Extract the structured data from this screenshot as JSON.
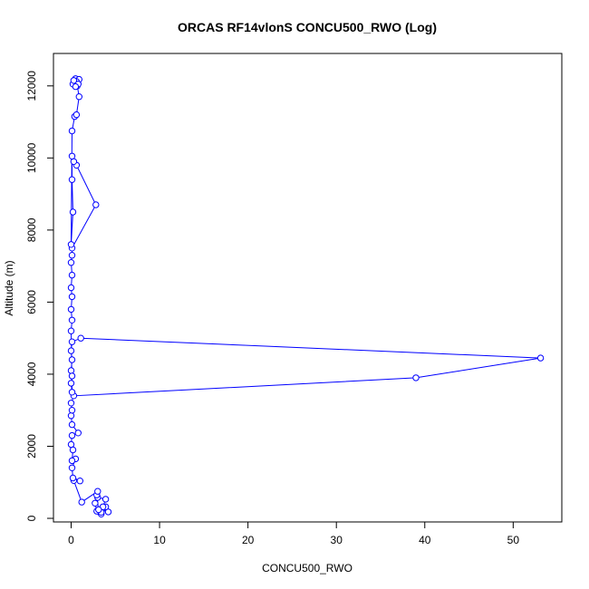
{
  "chart_data": {
    "type": "line",
    "title": "ORCAS RF14vlonS CONCU500_RWO (Log)",
    "xlabel": "CONCU500_RWO",
    "ylabel": "Altitude (m)",
    "xlim": [
      -2,
      55.5
    ],
    "ylim": [
      -100,
      12900
    ],
    "xticks": [
      0,
      10,
      20,
      30,
      40,
      50
    ],
    "yticks": [
      0,
      2000,
      4000,
      6000,
      8000,
      10000,
      12000
    ],
    "grid": false,
    "legend": "none",
    "marker": "open-circle",
    "series": [
      {
        "color": "#0000ff",
        "points": [
          {
            "x": 4.2,
            "y": 180
          },
          {
            "x": 3.9,
            "y": 320
          },
          {
            "x": 3.5,
            "y": 250
          },
          {
            "x": 3.3,
            "y": 160
          },
          {
            "x": 3.4,
            "y": 120
          },
          {
            "x": 2.9,
            "y": 200
          },
          {
            "x": 2.7,
            "y": 420
          },
          {
            "x": 3.0,
            "y": 580
          },
          {
            "x": 3.9,
            "y": 530
          },
          {
            "x": 3.6,
            "y": 320
          },
          {
            "x": 3.4,
            "y": 170
          },
          {
            "x": 3.1,
            "y": 240
          },
          {
            "x": 2.9,
            "y": 650
          },
          {
            "x": 3.0,
            "y": 750
          },
          {
            "x": 1.2,
            "y": 450
          },
          {
            "x": 0.3,
            "y": 1050
          },
          {
            "x": 1.0,
            "y": 1040
          },
          {
            "x": 0.2,
            "y": 1120
          },
          {
            "x": 0.1,
            "y": 1400
          },
          {
            "x": 0.5,
            "y": 1650
          },
          {
            "x": 0.1,
            "y": 1600
          },
          {
            "x": 0.2,
            "y": 1900
          },
          {
            "x": 0.0,
            "y": 2050
          },
          {
            "x": 0.1,
            "y": 2300
          },
          {
            "x": 0.8,
            "y": 2370
          },
          {
            "x": 0.1,
            "y": 2600
          },
          {
            "x": 0.0,
            "y": 2850
          },
          {
            "x": 0.1,
            "y": 3000
          },
          {
            "x": 0.0,
            "y": 3200
          },
          {
            "x": 0.3,
            "y": 3400
          },
          {
            "x": 39.0,
            "y": 3900
          },
          {
            "x": 53.1,
            "y": 4450
          },
          {
            "x": 1.1,
            "y": 5000
          },
          {
            "x": 0.1,
            "y": 4900
          },
          {
            "x": 0.0,
            "y": 4650
          },
          {
            "x": 0.1,
            "y": 4400
          },
          {
            "x": 0.0,
            "y": 4100
          },
          {
            "x": 0.1,
            "y": 3950
          },
          {
            "x": 0.0,
            "y": 3750
          },
          {
            "x": 0.1,
            "y": 3500
          },
          {
            "x": 0.0,
            "y": 5200
          },
          {
            "x": 0.1,
            "y": 5500
          },
          {
            "x": 0.0,
            "y": 5800
          },
          {
            "x": 0.1,
            "y": 6150
          },
          {
            "x": 0.0,
            "y": 6400
          },
          {
            "x": 0.1,
            "y": 6750
          },
          {
            "x": 0.0,
            "y": 7100
          },
          {
            "x": 0.1,
            "y": 7300
          },
          {
            "x": 0.1,
            "y": 7500
          },
          {
            "x": 2.8,
            "y": 8700
          },
          {
            "x": 0.6,
            "y": 9800
          },
          {
            "x": 0.3,
            "y": 9900
          },
          {
            "x": 0.1,
            "y": 10050
          },
          {
            "x": 0.1,
            "y": 9400
          },
          {
            "x": 0.2,
            "y": 8500
          },
          {
            "x": 0.0,
            "y": 7600
          },
          {
            "x": 0.1,
            "y": 10750
          },
          {
            "x": 0.4,
            "y": 11150
          },
          {
            "x": 0.6,
            "y": 11200
          },
          {
            "x": 0.9,
            "y": 11700
          },
          {
            "x": 0.7,
            "y": 12000
          },
          {
            "x": 0.4,
            "y": 12100
          },
          {
            "x": 0.2,
            "y": 12050
          },
          {
            "x": 0.5,
            "y": 12200
          },
          {
            "x": 0.9,
            "y": 12180
          },
          {
            "x": 0.6,
            "y": 12120
          },
          {
            "x": 0.3,
            "y": 12150
          },
          {
            "x": 0.8,
            "y": 12050
          },
          {
            "x": 0.5,
            "y": 11980
          }
        ]
      }
    ]
  }
}
